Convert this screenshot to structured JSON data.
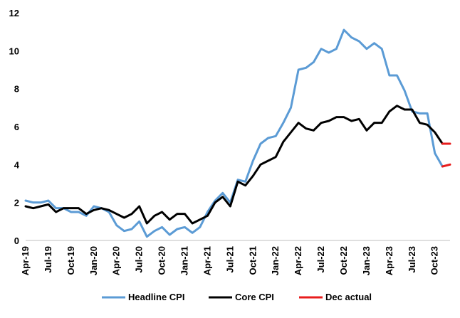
{
  "chart_data": {
    "type": "line",
    "title": "",
    "xlabel": "",
    "ylabel": "",
    "ylim": [
      0,
      12
    ],
    "yticks": [
      0,
      2,
      4,
      6,
      8,
      10,
      12
    ],
    "grid": false,
    "legend_placement": "bottom",
    "x": [
      "Apr-19",
      "May-19",
      "Jun-19",
      "Jul-19",
      "Aug-19",
      "Sep-19",
      "Oct-19",
      "Nov-19",
      "Dec-19",
      "Jan-20",
      "Feb-20",
      "Mar-20",
      "Apr-20",
      "May-20",
      "Jun-20",
      "Jul-20",
      "Aug-20",
      "Sep-20",
      "Oct-20",
      "Nov-20",
      "Dec-20",
      "Jan-21",
      "Feb-21",
      "Mar-21",
      "Apr-21",
      "May-21",
      "Jun-21",
      "Jul-21",
      "Aug-21",
      "Sep-21",
      "Oct-21",
      "Nov-21",
      "Dec-21",
      "Jan-22",
      "Feb-22",
      "Mar-22",
      "Apr-22",
      "May-22",
      "Jun-22",
      "Jul-22",
      "Aug-22",
      "Sep-22",
      "Oct-22",
      "Nov-22",
      "Dec-22",
      "Jan-23",
      "Feb-23",
      "Mar-23",
      "Apr-23",
      "May-23",
      "Jun-23",
      "Jul-23",
      "Aug-23",
      "Sep-23",
      "Oct-23",
      "Nov-23",
      "Dec-23"
    ],
    "x_tick_labels": [
      "Apr-19",
      "Jul-19",
      "Oct-19",
      "Jan-20",
      "Apr-20",
      "Jul-20",
      "Oct-20",
      "Jan-21",
      "Apr-21",
      "Jul-21",
      "Oct-21",
      "Jan-22",
      "Apr-22",
      "Jul-22",
      "Oct-22",
      "Jan-23",
      "Apr-23",
      "Jul-23",
      "Oct-23"
    ],
    "series": [
      {
        "name": "Headline CPI",
        "color": "#5b9bd5",
        "values": [
          2.1,
          2.0,
          2.0,
          2.1,
          1.7,
          1.7,
          1.5,
          1.5,
          1.3,
          1.8,
          1.7,
          1.5,
          0.8,
          0.5,
          0.6,
          1.0,
          0.2,
          0.5,
          0.7,
          0.3,
          0.6,
          0.7,
          0.4,
          0.7,
          1.5,
          2.1,
          2.5,
          2.0,
          3.2,
          3.1,
          4.2,
          5.1,
          5.4,
          5.5,
          6.2,
          7.0,
          9.0,
          9.1,
          9.4,
          10.1,
          9.9,
          10.1,
          11.1,
          10.7,
          10.5,
          10.1,
          10.4,
          10.1,
          8.7,
          8.7,
          7.9,
          6.8,
          6.7,
          6.7,
          4.6,
          3.9,
          null
        ]
      },
      {
        "name": "Core CPI",
        "color": "#000000",
        "values": [
          1.8,
          1.7,
          1.8,
          1.9,
          1.5,
          1.7,
          1.7,
          1.7,
          1.4,
          1.6,
          1.7,
          1.6,
          1.4,
          1.2,
          1.4,
          1.8,
          0.9,
          1.3,
          1.5,
          1.1,
          1.4,
          1.4,
          0.9,
          1.1,
          1.3,
          2.0,
          2.3,
          1.8,
          3.1,
          2.9,
          3.4,
          4.0,
          4.2,
          4.4,
          5.2,
          5.7,
          6.2,
          5.9,
          5.8,
          6.2,
          6.3,
          6.5,
          6.5,
          6.3,
          6.4,
          5.8,
          6.2,
          6.2,
          6.8,
          7.1,
          6.9,
          6.9,
          6.2,
          6.1,
          5.7,
          5.1,
          null
        ]
      },
      {
        "name": "Dec actual",
        "color": "#e81c1c",
        "segments": [
          {
            "x": [
              "Nov-23",
              "Dec-23"
            ],
            "values": [
              3.9,
              4.0
            ]
          },
          {
            "x": [
              "Nov-23",
              "Dec-23"
            ],
            "values": [
              5.1,
              5.1
            ]
          }
        ]
      }
    ]
  }
}
